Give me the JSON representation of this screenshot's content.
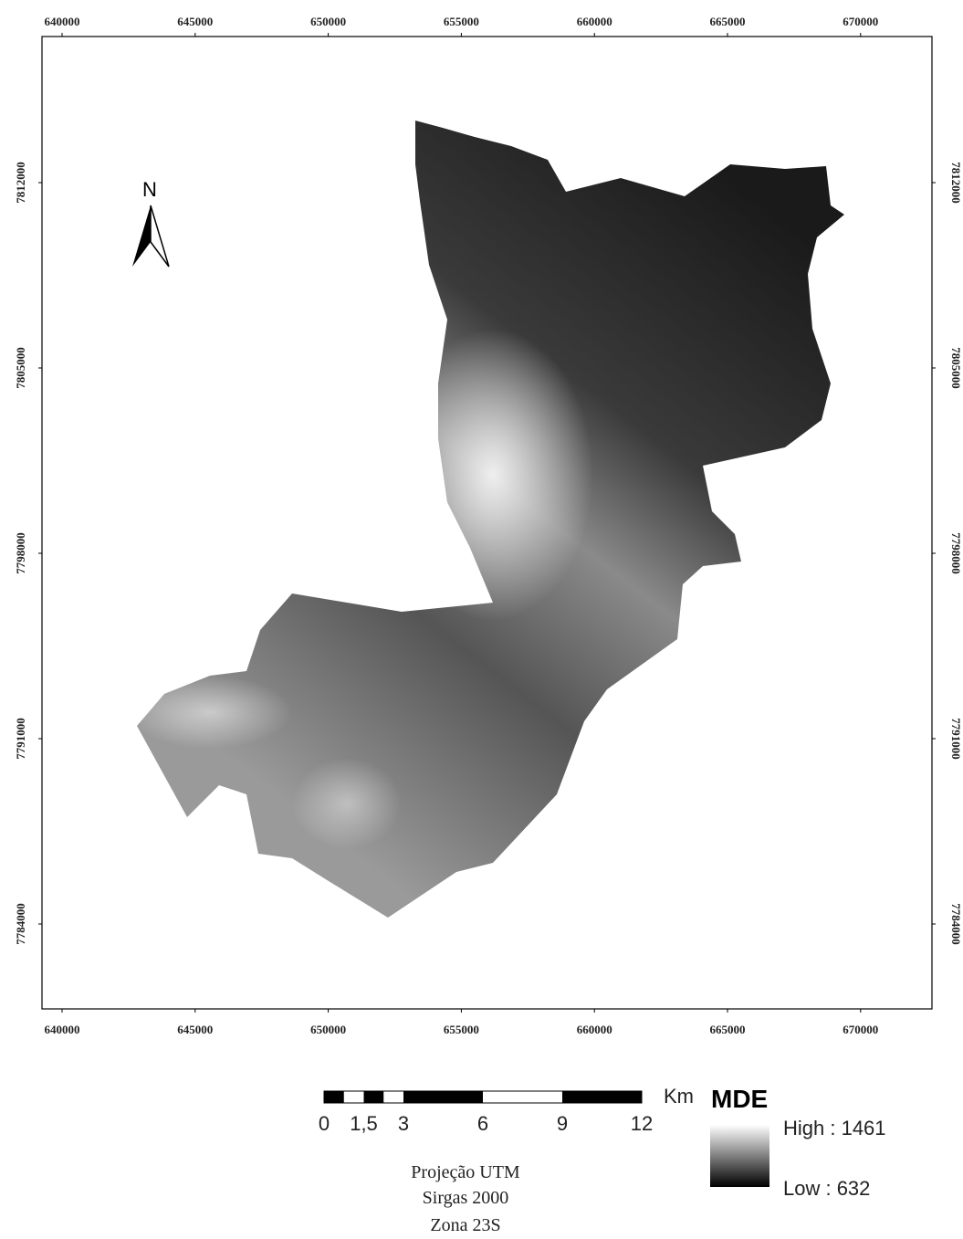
{
  "map": {
    "xticks": [
      640000,
      645000,
      650000,
      655000,
      660000,
      665000,
      670000
    ],
    "yticks": [
      7812000,
      7805000,
      7798000,
      7791000,
      7784000
    ],
    "north": "N",
    "scale_bar": {
      "unit": "Km",
      "ticks": [
        0,
        {
          "value": 1.5,
          "label": "1,5"
        },
        3,
        6,
        9,
        12
      ]
    },
    "legend": {
      "title": "MDE",
      "high": "High : 1461",
      "low": "Low : 632"
    },
    "projection": [
      "Projeção UTM",
      "Sirgas 2000",
      "Zona 23S"
    ]
  }
}
